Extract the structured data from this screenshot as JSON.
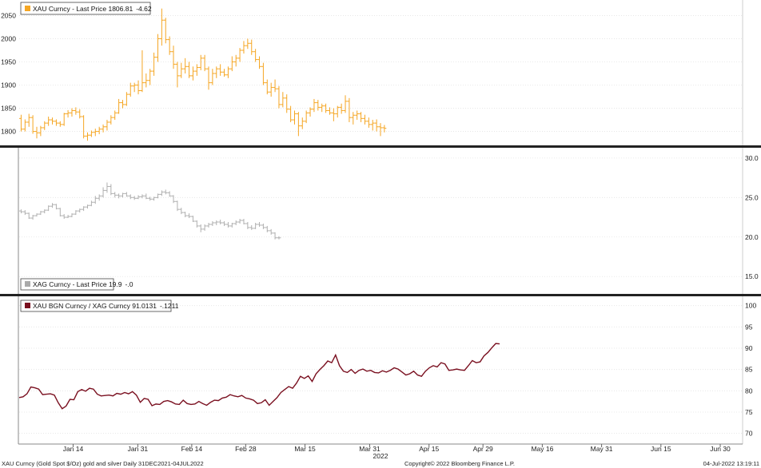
{
  "chart_data": [
    {
      "type": "ohlc",
      "legend": {
        "label": "XAU Curncy - Last Price 1806.81",
        "change": "-4.62",
        "color": "#F5A623"
      },
      "y_ticks": [
        1800,
        1850,
        1900,
        1950,
        2000,
        2050
      ],
      "ylim": [
        1770,
        2080
      ],
      "color": "#F5A623",
      "x_range": [
        0,
        185
      ],
      "ohlc": [
        [
          1828,
          1836,
          1800,
          1805
        ],
        [
          1805,
          1826,
          1800,
          1820
        ],
        [
          1820,
          1838,
          1810,
          1830
        ],
        [
          1830,
          1835,
          1795,
          1800
        ],
        [
          1800,
          1810,
          1785,
          1797
        ],
        [
          1797,
          1812,
          1790,
          1808
        ],
        [
          1808,
          1822,
          1803,
          1818
        ],
        [
          1818,
          1832,
          1812,
          1825
        ],
        [
          1825,
          1830,
          1815,
          1822
        ],
        [
          1822,
          1826,
          1812,
          1818
        ],
        [
          1818,
          1822,
          1810,
          1815
        ],
        [
          1815,
          1840,
          1812,
          1838
        ],
        [
          1838,
          1846,
          1830,
          1840
        ],
        [
          1840,
          1850,
          1832,
          1845
        ],
        [
          1845,
          1852,
          1836,
          1842
        ],
        [
          1842,
          1848,
          1828,
          1832
        ],
        [
          1832,
          1835,
          1785,
          1790
        ],
        [
          1790,
          1798,
          1780,
          1792
        ],
        [
          1792,
          1802,
          1788,
          1798
        ],
        [
          1798,
          1806,
          1790,
          1800
        ],
        [
          1800,
          1810,
          1794,
          1805
        ],
        [
          1805,
          1815,
          1798,
          1810
        ],
        [
          1810,
          1825,
          1802,
          1820
        ],
        [
          1820,
          1835,
          1815,
          1830
        ],
        [
          1830,
          1845,
          1825,
          1840
        ],
        [
          1840,
          1870,
          1838,
          1862
        ],
        [
          1862,
          1868,
          1850,
          1858
        ],
        [
          1858,
          1885,
          1855,
          1880
        ],
        [
          1880,
          1905,
          1875,
          1898
        ],
        [
          1898,
          1905,
          1885,
          1900
        ],
        [
          1900,
          1910,
          1880,
          1888
        ],
        [
          1888,
          1975,
          1885,
          1905
        ],
        [
          1905,
          1925,
          1895,
          1910
        ],
        [
          1910,
          1935,
          1900,
          1930
        ],
        [
          1930,
          1970,
          1920,
          1960
        ],
        [
          1960,
          2010,
          1950,
          2000
        ],
        [
          2000,
          2065,
          1985,
          2040
        ],
        [
          2040,
          2045,
          1990,
          1998
        ],
        [
          1998,
          2005,
          1965,
          1972
        ],
        [
          1972,
          1985,
          1935,
          1945
        ],
        [
          1945,
          1950,
          1895,
          1920
        ],
        [
          1920,
          1948,
          1915,
          1935
        ],
        [
          1935,
          1958,
          1925,
          1940
        ],
        [
          1940,
          1950,
          1915,
          1920
        ],
        [
          1920,
          1940,
          1910,
          1930
        ],
        [
          1930,
          1945,
          1920,
          1938
        ],
        [
          1938,
          1965,
          1932,
          1958
        ],
        [
          1958,
          1965,
          1930,
          1935
        ],
        [
          1935,
          1940,
          1890,
          1905
        ],
        [
          1905,
          1935,
          1900,
          1925
        ],
        [
          1925,
          1940,
          1915,
          1935
        ],
        [
          1935,
          1945,
          1920,
          1928
        ],
        [
          1928,
          1935,
          1918,
          1922
        ],
        [
          1922,
          1940,
          1915,
          1935
        ],
        [
          1935,
          1962,
          1930,
          1950
        ],
        [
          1950,
          1965,
          1940,
          1958
        ],
        [
          1958,
          1980,
          1950,
          1975
        ],
        [
          1975,
          1995,
          1968,
          1985
        ],
        [
          1985,
          2000,
          1978,
          1990
        ],
        [
          1990,
          1998,
          1965,
          1972
        ],
        [
          1972,
          1978,
          1950,
          1955
        ],
        [
          1955,
          1962,
          1935,
          1940
        ],
        [
          1940,
          1948,
          1900,
          1905
        ],
        [
          1905,
          1912,
          1880,
          1885
        ],
        [
          1885,
          1905,
          1875,
          1895
        ],
        [
          1895,
          1912,
          1885,
          1892
        ],
        [
          1892,
          1898,
          1850,
          1858
        ],
        [
          1858,
          1885,
          1852,
          1872
        ],
        [
          1872,
          1880,
          1840,
          1848
        ],
        [
          1848,
          1855,
          1820,
          1825
        ],
        [
          1825,
          1845,
          1815,
          1838
        ],
        [
          1838,
          1842,
          1790,
          1812
        ],
        [
          1812,
          1830,
          1805,
          1822
        ],
        [
          1822,
          1845,
          1818,
          1840
        ],
        [
          1840,
          1852,
          1832,
          1848
        ],
        [
          1848,
          1870,
          1842,
          1862
        ],
        [
          1862,
          1868,
          1845,
          1852
        ],
        [
          1852,
          1860,
          1842,
          1855
        ],
        [
          1855,
          1860,
          1840,
          1845
        ],
        [
          1845,
          1852,
          1836,
          1840
        ],
        [
          1840,
          1850,
          1822,
          1838
        ],
        [
          1838,
          1855,
          1830,
          1852
        ],
        [
          1852,
          1860,
          1838,
          1845
        ],
        [
          1845,
          1878,
          1840,
          1865
        ],
        [
          1865,
          1872,
          1820,
          1830
        ],
        [
          1830,
          1842,
          1815,
          1835
        ],
        [
          1835,
          1845,
          1825,
          1838
        ],
        [
          1838,
          1842,
          1820,
          1828
        ],
        [
          1828,
          1836,
          1815,
          1822
        ],
        [
          1822,
          1830,
          1808,
          1815
        ],
        [
          1815,
          1825,
          1802,
          1818
        ],
        [
          1818,
          1826,
          1800,
          1810
        ],
        [
          1810,
          1818,
          1790,
          1808
        ],
        [
          1808,
          1814,
          1798,
          1806.81
        ]
      ]
    },
    {
      "type": "ohlc",
      "legend": {
        "label": "XAG Curncy - Last Price 19.9",
        "change": "-.0",
        "color": "#AAAAAA"
      },
      "y_ticks": [
        15.0,
        20.0,
        25.0,
        30.0
      ],
      "y_tick_labels": [
        "15.0",
        "20.0",
        "25.0",
        "30.0"
      ],
      "ylim": [
        12.8,
        31.2
      ],
      "color": "#B0B0B0",
      "x_range": [
        0,
        185
      ],
      "ohlc": [
        [
          23.3,
          23.5,
          23.0,
          23.2
        ],
        [
          23.2,
          23.4,
          22.8,
          23.0
        ],
        [
          23.0,
          23.1,
          22.3,
          22.4
        ],
        [
          22.4,
          22.8,
          22.2,
          22.7
        ],
        [
          22.7,
          23.0,
          22.6,
          22.9
        ],
        [
          22.9,
          23.3,
          22.8,
          23.2
        ],
        [
          23.2,
          23.5,
          23.0,
          23.4
        ],
        [
          23.4,
          24.0,
          23.3,
          23.9
        ],
        [
          23.9,
          24.3,
          23.7,
          24.1
        ],
        [
          24.1,
          24.2,
          23.5,
          23.6
        ],
        [
          23.6,
          23.7,
          22.6,
          22.7
        ],
        [
          22.7,
          22.9,
          22.3,
          22.5
        ],
        [
          22.5,
          22.8,
          22.4,
          22.6
        ],
        [
          22.6,
          23.0,
          22.5,
          22.9
        ],
        [
          22.9,
          23.4,
          22.8,
          23.3
        ],
        [
          23.3,
          23.6,
          23.1,
          23.5
        ],
        [
          23.5,
          23.9,
          23.3,
          23.8
        ],
        [
          23.8,
          24.1,
          23.6,
          24.0
        ],
        [
          24.0,
          24.6,
          23.9,
          24.4
        ],
        [
          24.4,
          25.2,
          24.2,
          24.9
        ],
        [
          24.9,
          25.4,
          24.6,
          25.2
        ],
        [
          25.2,
          26.3,
          25.0,
          25.9
        ],
        [
          25.9,
          26.9,
          25.6,
          26.4
        ],
        [
          26.4,
          26.7,
          25.3,
          25.5
        ],
        [
          25.5,
          25.7,
          25.0,
          25.3
        ],
        [
          25.3,
          25.5,
          24.9,
          25.2
        ],
        [
          25.2,
          25.6,
          25.0,
          25.5
        ],
        [
          25.5,
          25.7,
          25.1,
          25.2
        ],
        [
          25.2,
          25.4,
          24.8,
          25.0
        ],
        [
          25.0,
          25.2,
          24.7,
          24.9
        ],
        [
          24.9,
          25.3,
          24.8,
          25.1
        ],
        [
          25.1,
          25.4,
          24.9,
          25.2
        ],
        [
          25.2,
          25.5,
          24.8,
          24.9
        ],
        [
          24.9,
          25.1,
          24.6,
          24.8
        ],
        [
          24.8,
          25.1,
          24.6,
          25.0
        ],
        [
          25.0,
          25.5,
          24.9,
          25.4
        ],
        [
          25.4,
          25.9,
          25.2,
          25.7
        ],
        [
          25.7,
          26.0,
          25.4,
          25.6
        ],
        [
          25.6,
          25.8,
          25.1,
          25.2
        ],
        [
          25.2,
          25.3,
          24.3,
          24.5
        ],
        [
          24.5,
          24.6,
          23.3,
          23.5
        ],
        [
          23.5,
          23.7,
          22.9,
          23.1
        ],
        [
          23.1,
          23.2,
          22.5,
          22.7
        ],
        [
          22.7,
          23.0,
          22.4,
          22.6
        ],
        [
          22.6,
          22.7,
          21.9,
          22.0
        ],
        [
          22.0,
          22.1,
          21.2,
          21.4
        ],
        [
          21.4,
          21.6,
          20.6,
          21.0
        ],
        [
          21.0,
          21.6,
          20.8,
          21.4
        ],
        [
          21.4,
          21.8,
          21.2,
          21.6
        ],
        [
          21.6,
          22.0,
          21.4,
          21.8
        ],
        [
          21.8,
          22.1,
          21.5,
          21.9
        ],
        [
          21.9,
          22.2,
          21.6,
          21.8
        ],
        [
          21.8,
          22.0,
          21.4,
          21.6
        ],
        [
          21.6,
          21.9,
          21.2,
          21.4
        ],
        [
          21.4,
          21.8,
          21.2,
          21.7
        ],
        [
          21.7,
          22.1,
          21.5,
          21.9
        ],
        [
          21.9,
          22.3,
          21.7,
          22.1
        ],
        [
          22.1,
          22.3,
          21.6,
          21.7
        ],
        [
          21.7,
          21.9,
          21.0,
          21.2
        ],
        [
          21.2,
          21.5,
          20.9,
          21.1
        ],
        [
          21.1,
          21.8,
          21.0,
          21.6
        ],
        [
          21.6,
          21.9,
          21.3,
          21.5
        ],
        [
          21.5,
          21.7,
          21.0,
          21.2
        ],
        [
          21.2,
          21.4,
          20.6,
          20.8
        ],
        [
          20.8,
          21.0,
          20.3,
          20.5
        ],
        [
          20.5,
          20.6,
          19.7,
          19.9
        ],
        [
          19.9,
          20.1,
          19.7,
          19.9
        ]
      ]
    },
    {
      "type": "line",
      "legend": {
        "label": "XAU BGN Curncy / XAG Curncy 91.0131",
        "change": "-.1211",
        "color": "#7A1020"
      },
      "y_ticks": [
        70,
        75,
        80,
        85,
        90,
        95,
        100
      ],
      "ylim": [
        67.5,
        102
      ],
      "color": "#7A1020",
      "x_range": [
        0,
        185
      ],
      "values": [
        78.4,
        78.6,
        79.3,
        80.9,
        80.7,
        80.4,
        79.1,
        79.2,
        79.3,
        79.0,
        77.2,
        75.8,
        76.4,
        78.0,
        77.9,
        79.8,
        80.3,
        79.9,
        80.6,
        80.4,
        79.2,
        78.8,
        78.9,
        79.0,
        78.8,
        79.4,
        79.2,
        79.6,
        79.3,
        79.8,
        79.0,
        77.3,
        78.2,
        78.0,
        76.5,
        76.9,
        76.8,
        77.5,
        77.7,
        77.4,
        76.9,
        76.8,
        77.8,
        77.0,
        76.8,
        76.9,
        77.5,
        77.0,
        76.6,
        77.3,
        77.8,
        77.7,
        78.3,
        78.5,
        79.1,
        78.8,
        78.6,
        78.9,
        78.3,
        78.1,
        77.8,
        77.0,
        77.2,
        77.9,
        76.6,
        77.5,
        78.4,
        79.6,
        80.3,
        81.0,
        80.6,
        81.8,
        83.4,
        82.9,
        83.5,
        82.2,
        84.0,
        85.0,
        85.9,
        87.0,
        86.6,
        88.4,
        85.9,
        84.6,
        84.3,
        85.0,
        84.1,
        84.8,
        85.1,
        84.6,
        84.8,
        84.3,
        84.2,
        84.7,
        84.4,
        84.8,
        85.4,
        85.1,
        84.4,
        83.7,
        84.0,
        84.6,
        83.7,
        83.4,
        84.6,
        85.4,
        85.9,
        85.6,
        86.6,
        86.3,
        84.8,
        84.9,
        85.1,
        84.9,
        84.8,
        85.9,
        87.1,
        86.6,
        86.8,
        88.2,
        89.0,
        90.1,
        91.1,
        91.0131
      ]
    }
  ],
  "x_ticks": [
    {
      "label": "Jan 14",
      "pos": 10
    },
    {
      "label": "Jan 31",
      "pos": 22
    },
    {
      "label": "Feb 14",
      "pos": 32
    },
    {
      "label": "Feb 28",
      "pos": 42
    },
    {
      "label": "Mar 15",
      "pos": 53
    },
    {
      "label": "Mar 31",
      "pos": 65
    },
    {
      "label": "Apr 15",
      "pos": 76
    },
    {
      "label": "Apr 29",
      "pos": 86
    },
    {
      "label": "May 16",
      "pos": 97
    },
    {
      "label": "May 31",
      "pos": 108
    },
    {
      "label": "Jun 15",
      "pos": 119
    },
    {
      "label": "Jun 30",
      "pos": 130
    }
  ],
  "x_tick_max": 134,
  "year_label": "2022",
  "footer": {
    "left": "XAU Curncy (Gold Spot  $/Oz) gold and silver  Daily 31DEC2021-04JUL2022",
    "center": "Copyright© 2022 Bloomberg Finance L.P.",
    "right": "04-Jul-2022 13:19:11"
  }
}
